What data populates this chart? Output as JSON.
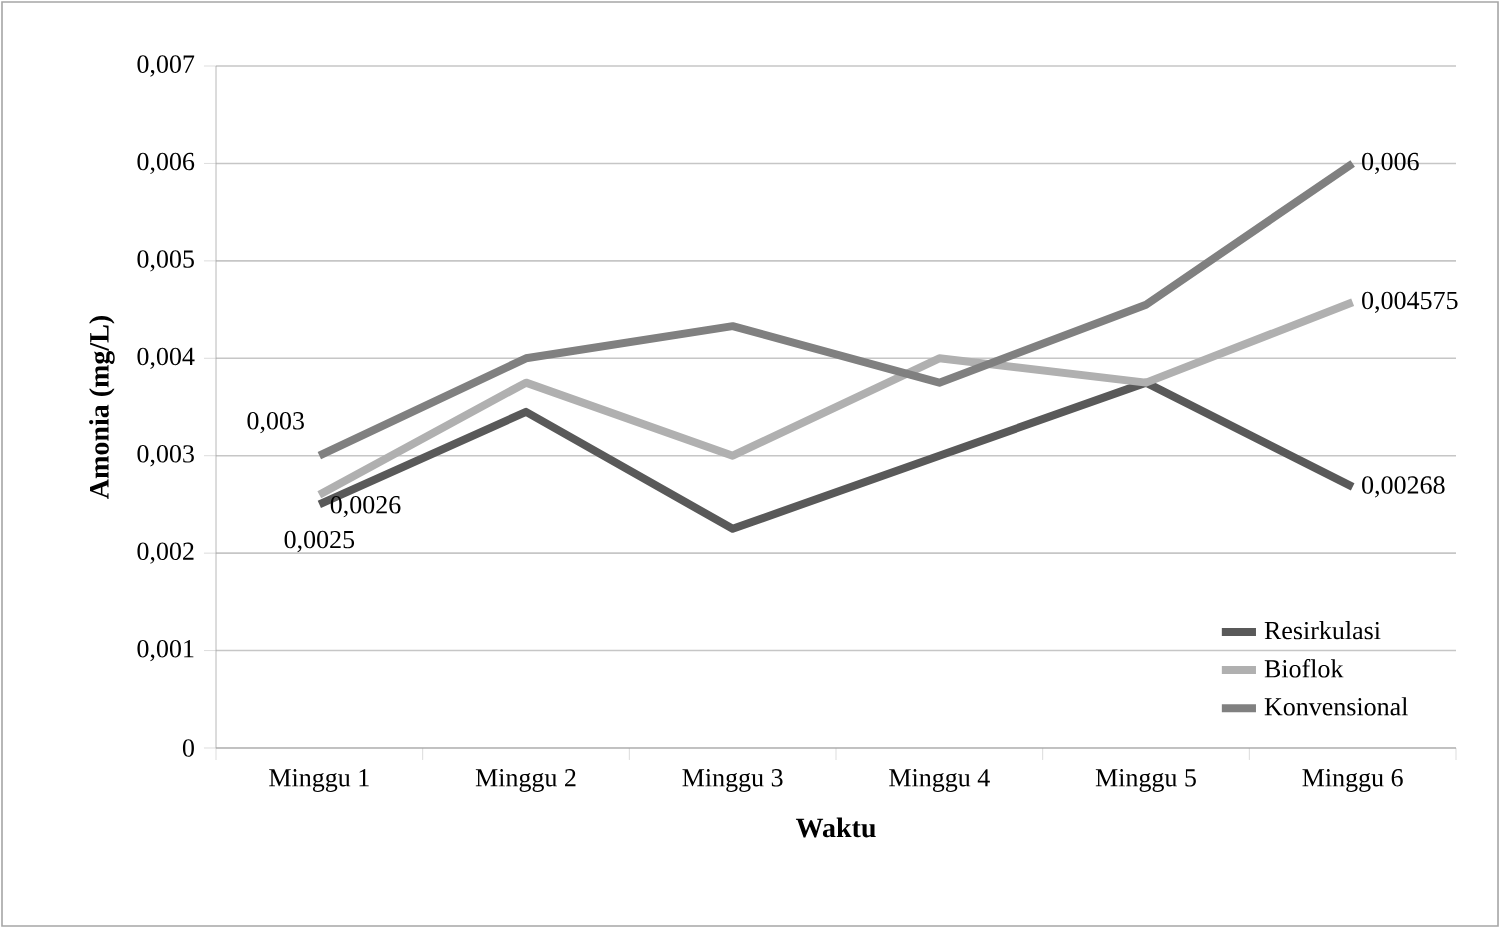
{
  "chart_data": {
    "type": "line",
    "xlabel": "Waktu",
    "ylabel": "Amonia (mg/L)",
    "categories": [
      "Minggu 1",
      "Minggu 2",
      "Minggu 3",
      "Minggu 4",
      "Minggu 5",
      "Minggu 6"
    ],
    "series": [
      {
        "name": "Resirkulasi",
        "color": "#595959",
        "values": [
          0.0025,
          0.00345,
          0.00225,
          0.003,
          0.00375,
          0.00268
        ],
        "value_labels": [
          "0,0025",
          null,
          null,
          null,
          null,
          "0,00268"
        ]
      },
      {
        "name": "Bioflok",
        "color": "#b0b0b0",
        "values": [
          0.0026,
          0.00375,
          0.003,
          0.004,
          0.00375,
          0.004575
        ],
        "value_labels": [
          "0,0026",
          null,
          null,
          null,
          null,
          "0,004575"
        ]
      },
      {
        "name": "Konvensional",
        "color": "#808080",
        "values": [
          0.003,
          0.004,
          0.00433,
          0.00375,
          0.00455,
          0.006
        ],
        "value_labels": [
          "0,003",
          null,
          null,
          null,
          null,
          "0,006"
        ]
      }
    ],
    "ylim": [
      0,
      0.007
    ],
    "yticks": [
      0,
      {
        "value": 0.001,
        "label": "0,001"
      },
      {
        "value": 0.002,
        "label": "0,002"
      },
      {
        "value": 0.003,
        "label": "0,003"
      },
      {
        "value": 0.004,
        "label": "0,004"
      },
      {
        "value": 0.005,
        "label": "0,005"
      },
      {
        "value": 0.006,
        "label": "0,006"
      },
      {
        "value": 0.007,
        "label": "0,007"
      }
    ],
    "grid": "y",
    "legend": "bottom right",
    "marker": "none",
    "line_style": "solid"
  }
}
